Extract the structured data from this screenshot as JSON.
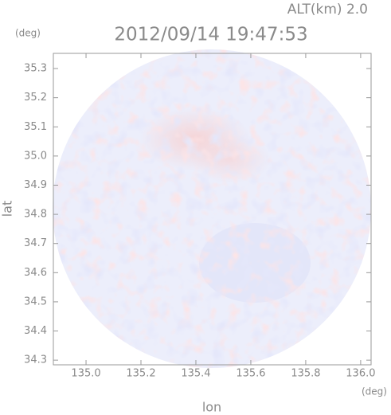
{
  "chart_data": {
    "type": "image",
    "title": "2012/09/14 19:47:53",
    "altitude_label": "ALT(km) 2.0",
    "x_label": "lon",
    "y_label": "lat",
    "x_unit": "(deg)",
    "y_unit": "(deg)",
    "xlim": [
      134.881,
      136.038
    ],
    "ylim": [
      34.284,
      35.352
    ],
    "xticks": [
      {
        "value": 135.0,
        "label": "135.0"
      },
      135.2,
      135.4,
      135.6,
      135.8,
      {
        "value": 136.0,
        "label": "136.0"
      }
    ],
    "yticks": [
      34.3,
      34.4,
      34.5,
      34.6,
      34.7,
      34.8,
      34.9,
      {
        "value": 35.0,
        "label": "35.0"
      },
      35.1,
      35.2,
      35.3
    ]
  }
}
